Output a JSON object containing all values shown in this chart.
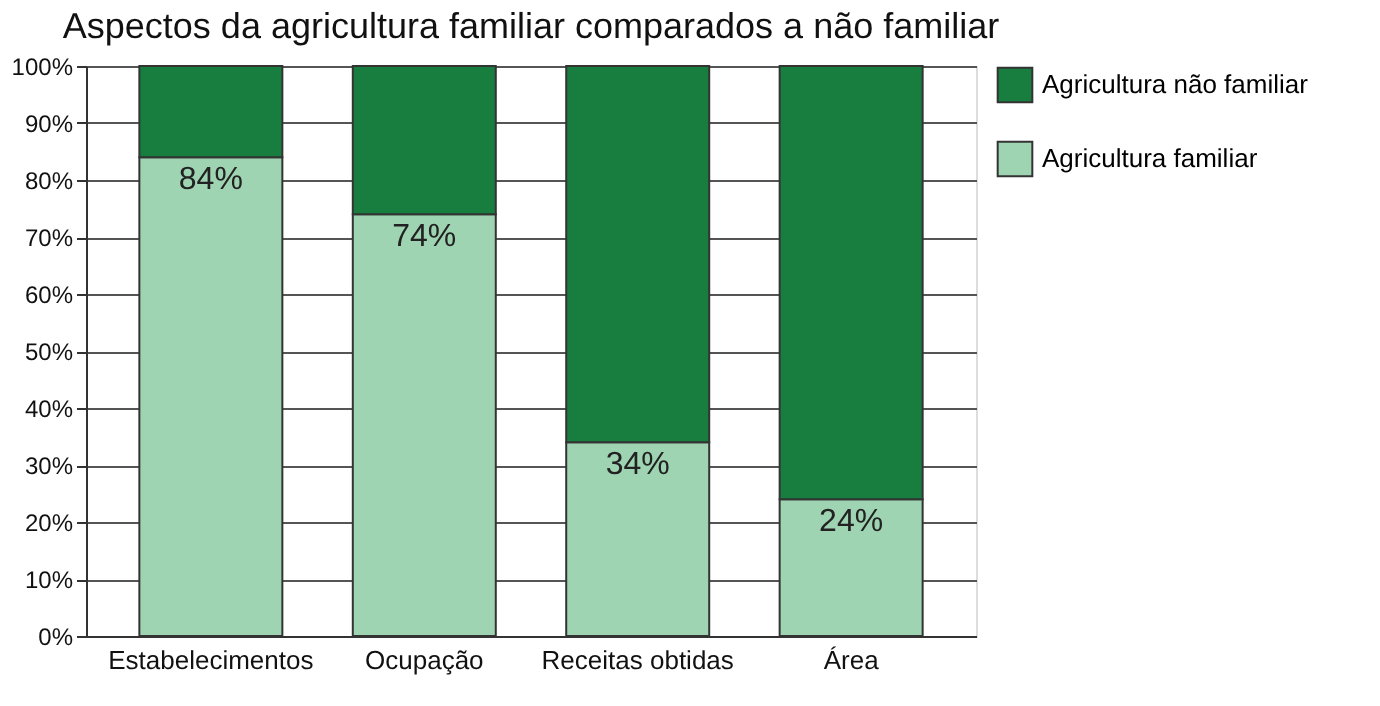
{
  "chart_data": {
    "type": "bar",
    "title": "Aspectos da agricultura familiar comparados a não familiar",
    "categories": [
      "Estabelecimentos",
      "Ocupação",
      "Receitas obtidas",
      "Área"
    ],
    "stacked": true,
    "series": [
      {
        "name": "Agricultura familiar",
        "color": "#9fd4b2",
        "values": [
          84,
          74,
          34,
          24
        ],
        "value_labels": [
          "84%",
          "74%",
          "34%",
          "24%"
        ]
      },
      {
        "name": "Agricultura não familiar",
        "color": "#177e3f",
        "values": [
          16,
          26,
          66,
          76
        ]
      }
    ],
    "ylim": [
      0,
      100
    ],
    "yticks": [
      {
        "value": 0,
        "label": "0%"
      },
      {
        "value": 10,
        "label": "10%"
      },
      {
        "value": 20,
        "label": "20%"
      },
      {
        "value": 30,
        "label": "30%"
      },
      {
        "value": 40,
        "label": "40%"
      },
      {
        "value": 50,
        "label": "50%"
      },
      {
        "value": 60,
        "label": "60%"
      },
      {
        "value": 70,
        "label": "70%"
      },
      {
        "value": 80,
        "label": "80%"
      },
      {
        "value": 90,
        "label": "90%"
      },
      {
        "value": 100,
        "label": "100%"
      }
    ],
    "grid": "y",
    "legend": "right"
  }
}
